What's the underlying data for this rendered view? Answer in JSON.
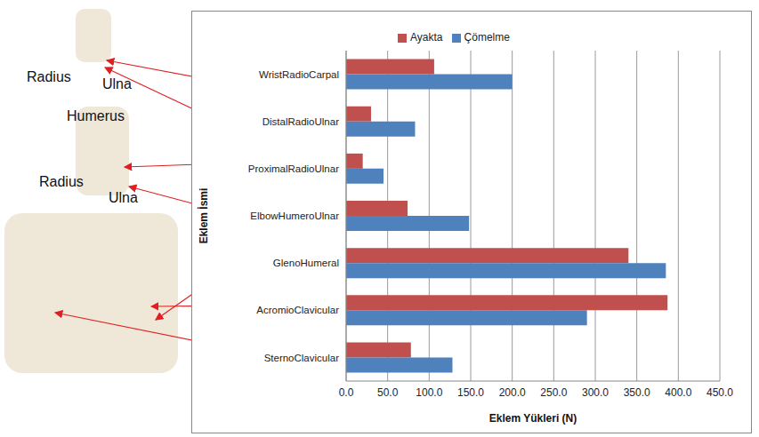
{
  "chart_data": {
    "type": "bar",
    "orientation": "horizontal",
    "categories": [
      "WristRadioCarpal",
      "DistalRadioUlnar",
      "ProximalRadioUlnar",
      "ElbowHumeroUlnar",
      "GlenoHumeral",
      "AcromioClavicular",
      "SternoClavicular"
    ],
    "series": [
      {
        "name": "Ayakta",
        "color": "#c0504d",
        "values": [
          106,
          30,
          20,
          74,
          340,
          387,
          78
        ]
      },
      {
        "name": "Çömelme",
        "color": "#4f81bd",
        "values": [
          200,
          83,
          45,
          148,
          385,
          290,
          128
        ]
      }
    ],
    "x_label": "Eklem Yükleri (N)",
    "y_label": "Eklem İsmi",
    "xlim": [
      0,
      450
    ],
    "xticks": [
      {
        "value": 0,
        "label": "0.0"
      },
      {
        "value": 50,
        "label": "50.0"
      },
      {
        "value": 100,
        "label": "100.0"
      },
      {
        "value": 150,
        "label": "150.0"
      },
      {
        "value": 200,
        "label": "200.0"
      },
      {
        "value": 250,
        "label": "250.0"
      },
      {
        "value": 300,
        "label": "300.0"
      },
      {
        "value": 350,
        "label": "350.0"
      },
      {
        "value": 400,
        "label": "400.0"
      },
      {
        "value": 450,
        "label": "450.0"
      }
    ],
    "grid": true,
    "legend": "top",
    "annotations": [
      "Radius",
      "Ulna",
      "Humerus",
      "Radius",
      "Ulna"
    ]
  }
}
